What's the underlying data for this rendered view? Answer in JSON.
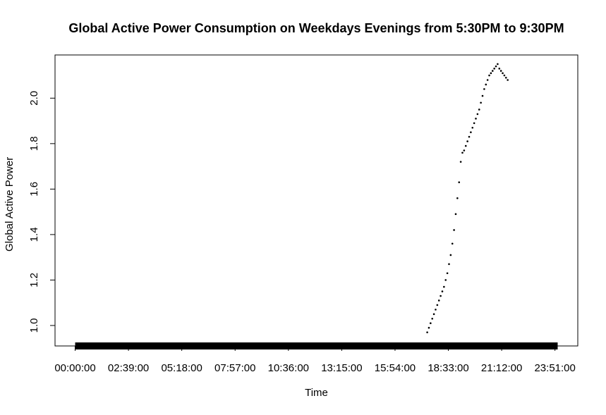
{
  "chart_data": {
    "type": "scatter",
    "title": "Global Active Power Consumption on Weekdays Evenings from 5:30PM to 9:30PM",
    "xlabel": "Time",
    "ylabel": "Global Active Power",
    "x_tick_labels": [
      "00:00:00",
      "02:39:00",
      "05:18:00",
      "07:57:00",
      "10:36:00",
      "13:15:00",
      "15:54:00",
      "18:33:00",
      "21:12:00",
      "23:51:00"
    ],
    "x_tick_minutes": [
      0,
      159,
      318,
      477,
      636,
      795,
      954,
      1113,
      1272,
      1431
    ],
    "xlim_minutes": [
      -60,
      1499
    ],
    "y_tick_labels": [
      "1.0",
      "1.2",
      "1.4",
      "1.6",
      "1.8",
      "2.0"
    ],
    "y_ticks": [
      1.0,
      1.2,
      1.4,
      1.6,
      1.8,
      2.0
    ],
    "ylim": [
      0.91,
      2.19
    ],
    "series": [
      {
        "x_minutes": [
          1050,
          1055,
          1060,
          1065,
          1070,
          1075,
          1080,
          1085,
          1090,
          1095,
          1100,
          1105,
          1110,
          1115,
          1120,
          1125,
          1130,
          1135,
          1140,
          1145,
          1150,
          1155,
          1160,
          1165,
          1170,
          1175,
          1180,
          1185,
          1190,
          1195,
          1200,
          1205,
          1210,
          1215,
          1220,
          1225,
          1230,
          1235,
          1240,
          1245,
          1250,
          1255,
          1260,
          1265,
          1270,
          1275,
          1280,
          1285,
          1290
        ],
        "values": [
          0.97,
          0.99,
          1.01,
          1.03,
          1.05,
          1.07,
          1.09,
          1.11,
          1.13,
          1.15,
          1.17,
          1.2,
          1.23,
          1.27,
          1.31,
          1.36,
          1.42,
          1.49,
          1.56,
          1.63,
          1.72,
          1.76,
          1.77,
          1.79,
          1.81,
          1.83,
          1.85,
          1.87,
          1.89,
          1.91,
          1.93,
          1.95,
          1.98,
          2.01,
          2.04,
          2.06,
          2.08,
          2.1,
          2.11,
          2.12,
          2.13,
          2.14,
          2.15,
          2.13,
          2.12,
          2.11,
          2.1,
          2.09,
          2.08
        ],
        "color": "#000000"
      }
    ],
    "baseline_band": {
      "x_minutes": [
        0,
        1439
      ],
      "value": 0.91
    },
    "grid": false,
    "legend": "none"
  }
}
